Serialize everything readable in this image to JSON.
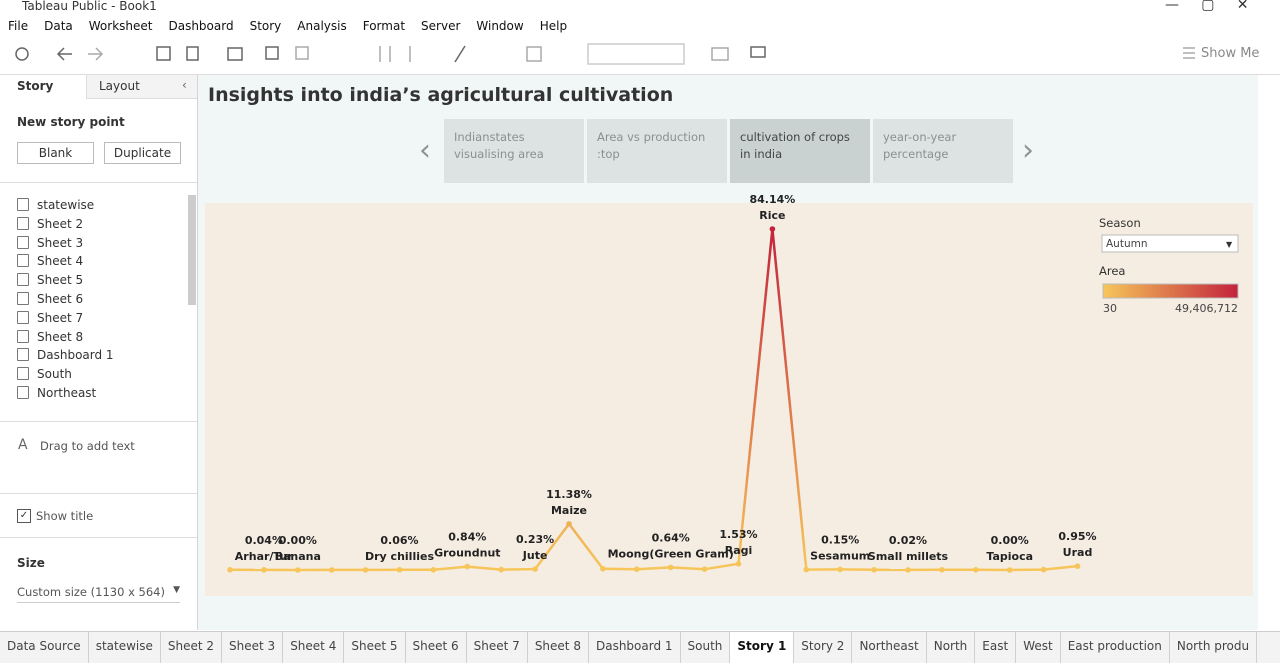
{
  "window": {
    "title": "Tableau Public - Book1"
  },
  "menu": [
    "File",
    "Data",
    "Worksheet",
    "Dashboard",
    "Story",
    "Analysis",
    "Format",
    "Server",
    "Window",
    "Help"
  ],
  "toolbar": {
    "show_me": "Show Me"
  },
  "sidebar": {
    "tabs": [
      "Story",
      "Layout"
    ],
    "new_story_point": "New story point",
    "buttons": [
      "Blank",
      "Duplicate"
    ],
    "sheets": [
      "statewise",
      "Sheet 2",
      "Sheet 3",
      "Sheet 4",
      "Sheet 5",
      "Sheet 6",
      "Sheet 7",
      "Sheet 8",
      "Dashboard 1",
      "South",
      "Northeast"
    ],
    "drag_text": "Drag to add text",
    "show_title": "Show title",
    "size_label": "Size",
    "size_value": "Custom size (1130 x 564)"
  },
  "story": {
    "title": "Insights into india’s agricultural cultivation",
    "points": [
      "Indianstates visualising area",
      "Area vs production :top",
      "cultivation of crops in india",
      "year-on-year percentage"
    ],
    "active": 2
  },
  "chart_data": {
    "type": "line",
    "categories": [
      null,
      "Arhar/Tur",
      "Banana",
      null,
      null,
      "Dry chillies",
      null,
      "Groundnut",
      null,
      "Jute",
      "Maize",
      null,
      null,
      "Moong(Green Gram)",
      null,
      "Ragi",
      "Rice",
      null,
      "Sesamum",
      null,
      "Small millets",
      null,
      null,
      "Tapioca",
      null,
      "Urad"
    ],
    "values": [
      0.05,
      0.04,
      0.0,
      0.02,
      0.03,
      0.06,
      0.05,
      0.84,
      0.1,
      0.23,
      11.38,
      0.3,
      0.2,
      0.64,
      0.2,
      1.53,
      84.14,
      0.1,
      0.15,
      0.05,
      0.02,
      0.05,
      0.05,
      0.0,
      0.1,
      0.95
    ],
    "value_labels": [
      null,
      "0.04%",
      "0.00%",
      null,
      null,
      "0.06%",
      null,
      "0.84%",
      null,
      "0.23%",
      "11.38%",
      null,
      null,
      "0.64%",
      null,
      "1.53%",
      "84.14%",
      null,
      "0.15%",
      null,
      "0.02%",
      null,
      null,
      "0.00%",
      null,
      "0.95%"
    ],
    "filter": {
      "title": "Season",
      "value": "Autumn"
    },
    "color_legend": {
      "title": "Area",
      "min": 30,
      "max": {
        "value": 49406712,
        "label": "49,406,712"
      },
      "colors": [
        "#f6c65a",
        "#c3233c"
      ]
    }
  },
  "tabs": [
    "Data Source",
    "statewise",
    "Sheet 2",
    "Sheet 3",
    "Sheet 4",
    "Sheet 5",
    "Sheet 6",
    "Sheet 7",
    "Sheet 8",
    "Dashboard 1",
    "South",
    "Story 1",
    "Story 2",
    "Northeast",
    "North",
    "East",
    "West",
    "East production",
    "North produ"
  ],
  "active_tab": 11
}
